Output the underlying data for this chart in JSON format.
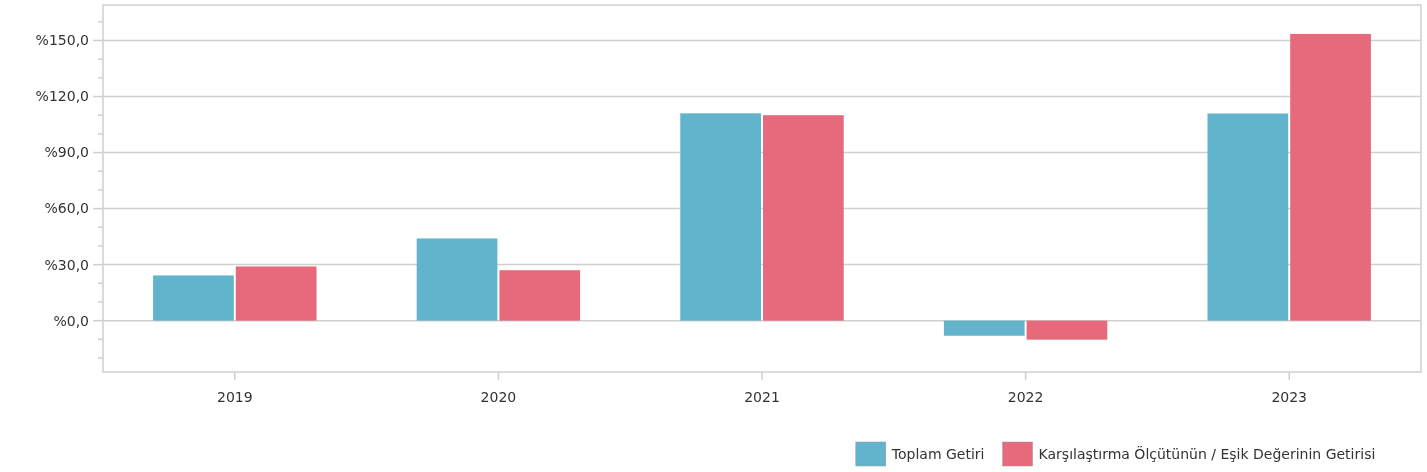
{
  "chart_data": {
    "type": "bar",
    "categories": [
      "2019",
      "2020",
      "2021",
      "2022",
      "2023"
    ],
    "series": [
      {
        "name": "Toplam Getiri",
        "color": "#62b4cc",
        "values": [
          24.2,
          44,
          111,
          -8.1,
          110.9
        ]
      },
      {
        "name": "Karşılaştırma Ölçütünün / Eşik Değerinin Getirisi",
        "color": "#e66a7c",
        "values": [
          29,
          27,
          110,
          -10.2,
          153.5
        ]
      }
    ],
    "ylim": [
      -27.5,
      169
    ],
    "yticks": [
      {
        "value": -20,
        "label": null
      },
      {
        "value": -10,
        "label": null
      },
      {
        "value": 0,
        "label": "%0,0"
      },
      {
        "value": 10,
        "label": null
      },
      {
        "value": 20,
        "label": null
      },
      {
        "value": 30,
        "label": "%30,0"
      },
      {
        "value": 40,
        "label": null
      },
      {
        "value": 50,
        "label": null
      },
      {
        "value": 60,
        "label": "%60,0"
      },
      {
        "value": 70,
        "label": null
      },
      {
        "value": 80,
        "label": null
      },
      {
        "value": 90,
        "label": "%90,0"
      },
      {
        "value": 100,
        "label": null
      },
      {
        "value": 110,
        "label": null
      },
      {
        "value": 120,
        "label": "%120,0"
      },
      {
        "value": 130,
        "label": null
      },
      {
        "value": 140,
        "label": null
      },
      {
        "value": 150,
        "label": "%150,0"
      },
      {
        "value": 160,
        "label": null
      }
    ],
    "grid": "y",
    "legend": "bottom right"
  }
}
